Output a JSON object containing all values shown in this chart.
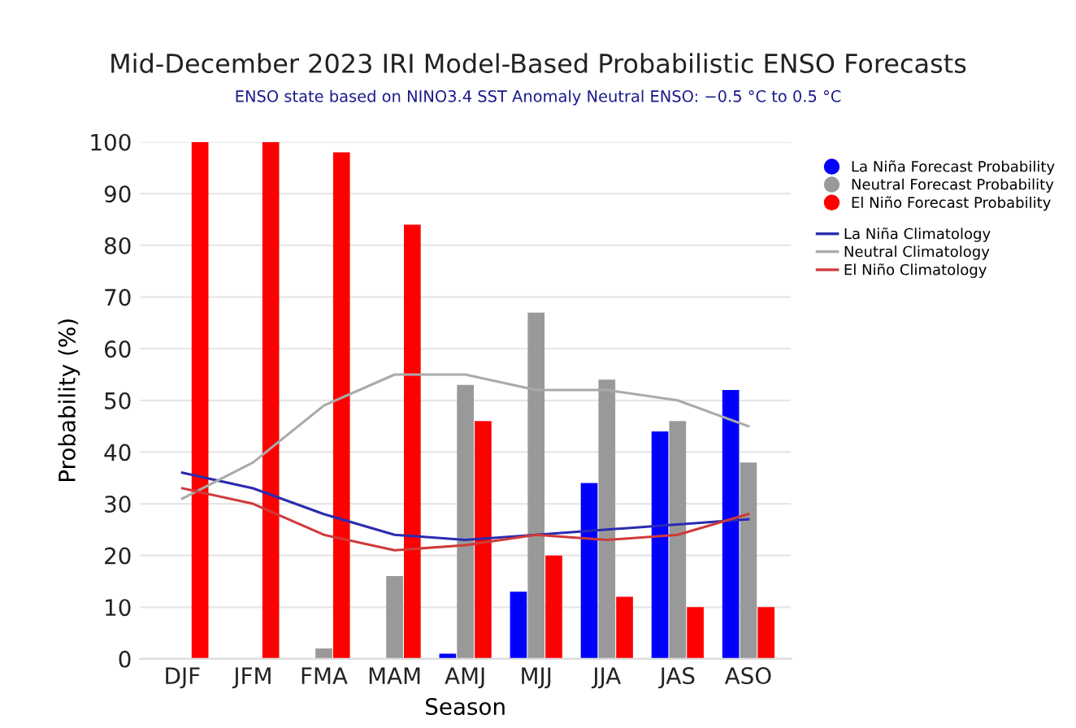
{
  "chart_data": {
    "type": "bar",
    "title": "Mid-December 2023 IRI Model-Based Probabilistic ENSO Forecasts",
    "subtitle": "ENSO state based on NINO3.4 SST Anomaly Neutral ENSO: −0.5 °C to 0.5 °C",
    "xlabel": "Season",
    "ylabel": "Probability (%)",
    "categories": [
      "DJF",
      "JFM",
      "FMA",
      "MAM",
      "AMJ",
      "MJJ",
      "JJA",
      "JAS",
      "ASO"
    ],
    "series": [
      {
        "name": "La Niña Forecast Probability",
        "color": "#0000ff",
        "values": [
          0,
          0,
          0,
          0,
          1,
          13,
          34,
          44,
          52
        ]
      },
      {
        "name": "Neutral Forecast Probability",
        "color": "#999999",
        "values": [
          0,
          0,
          2,
          16,
          53,
          67,
          54,
          46,
          38
        ]
      },
      {
        "name": "El Niño Forecast Probability",
        "color": "#ff0000",
        "values": [
          100,
          100,
          98,
          84,
          46,
          20,
          12,
          10,
          10
        ]
      },
      {
        "name": "La Niña Climatology",
        "type": "line",
        "color": "#2b2bb0",
        "values": [
          36,
          33,
          28,
          24,
          23,
          24,
          25,
          26,
          27
        ]
      },
      {
        "name": "Neutral Climatology",
        "type": "line",
        "color": "#aaaaaa",
        "values": [
          31,
          38,
          49,
          55,
          55,
          52,
          52,
          50,
          45
        ]
      },
      {
        "name": "El Niño Climatology",
        "type": "line",
        "color": "#d03a3a",
        "values": [
          33,
          30,
          24,
          21,
          22,
          24,
          23,
          24,
          28
        ]
      }
    ],
    "ylim": [
      0,
      100
    ],
    "yticks": [
      0,
      10,
      20,
      30,
      40,
      50,
      60,
      70,
      80,
      90,
      100
    ],
    "grid": "y",
    "legend": "right",
    "marker": "none",
    "line_style": "solid"
  }
}
